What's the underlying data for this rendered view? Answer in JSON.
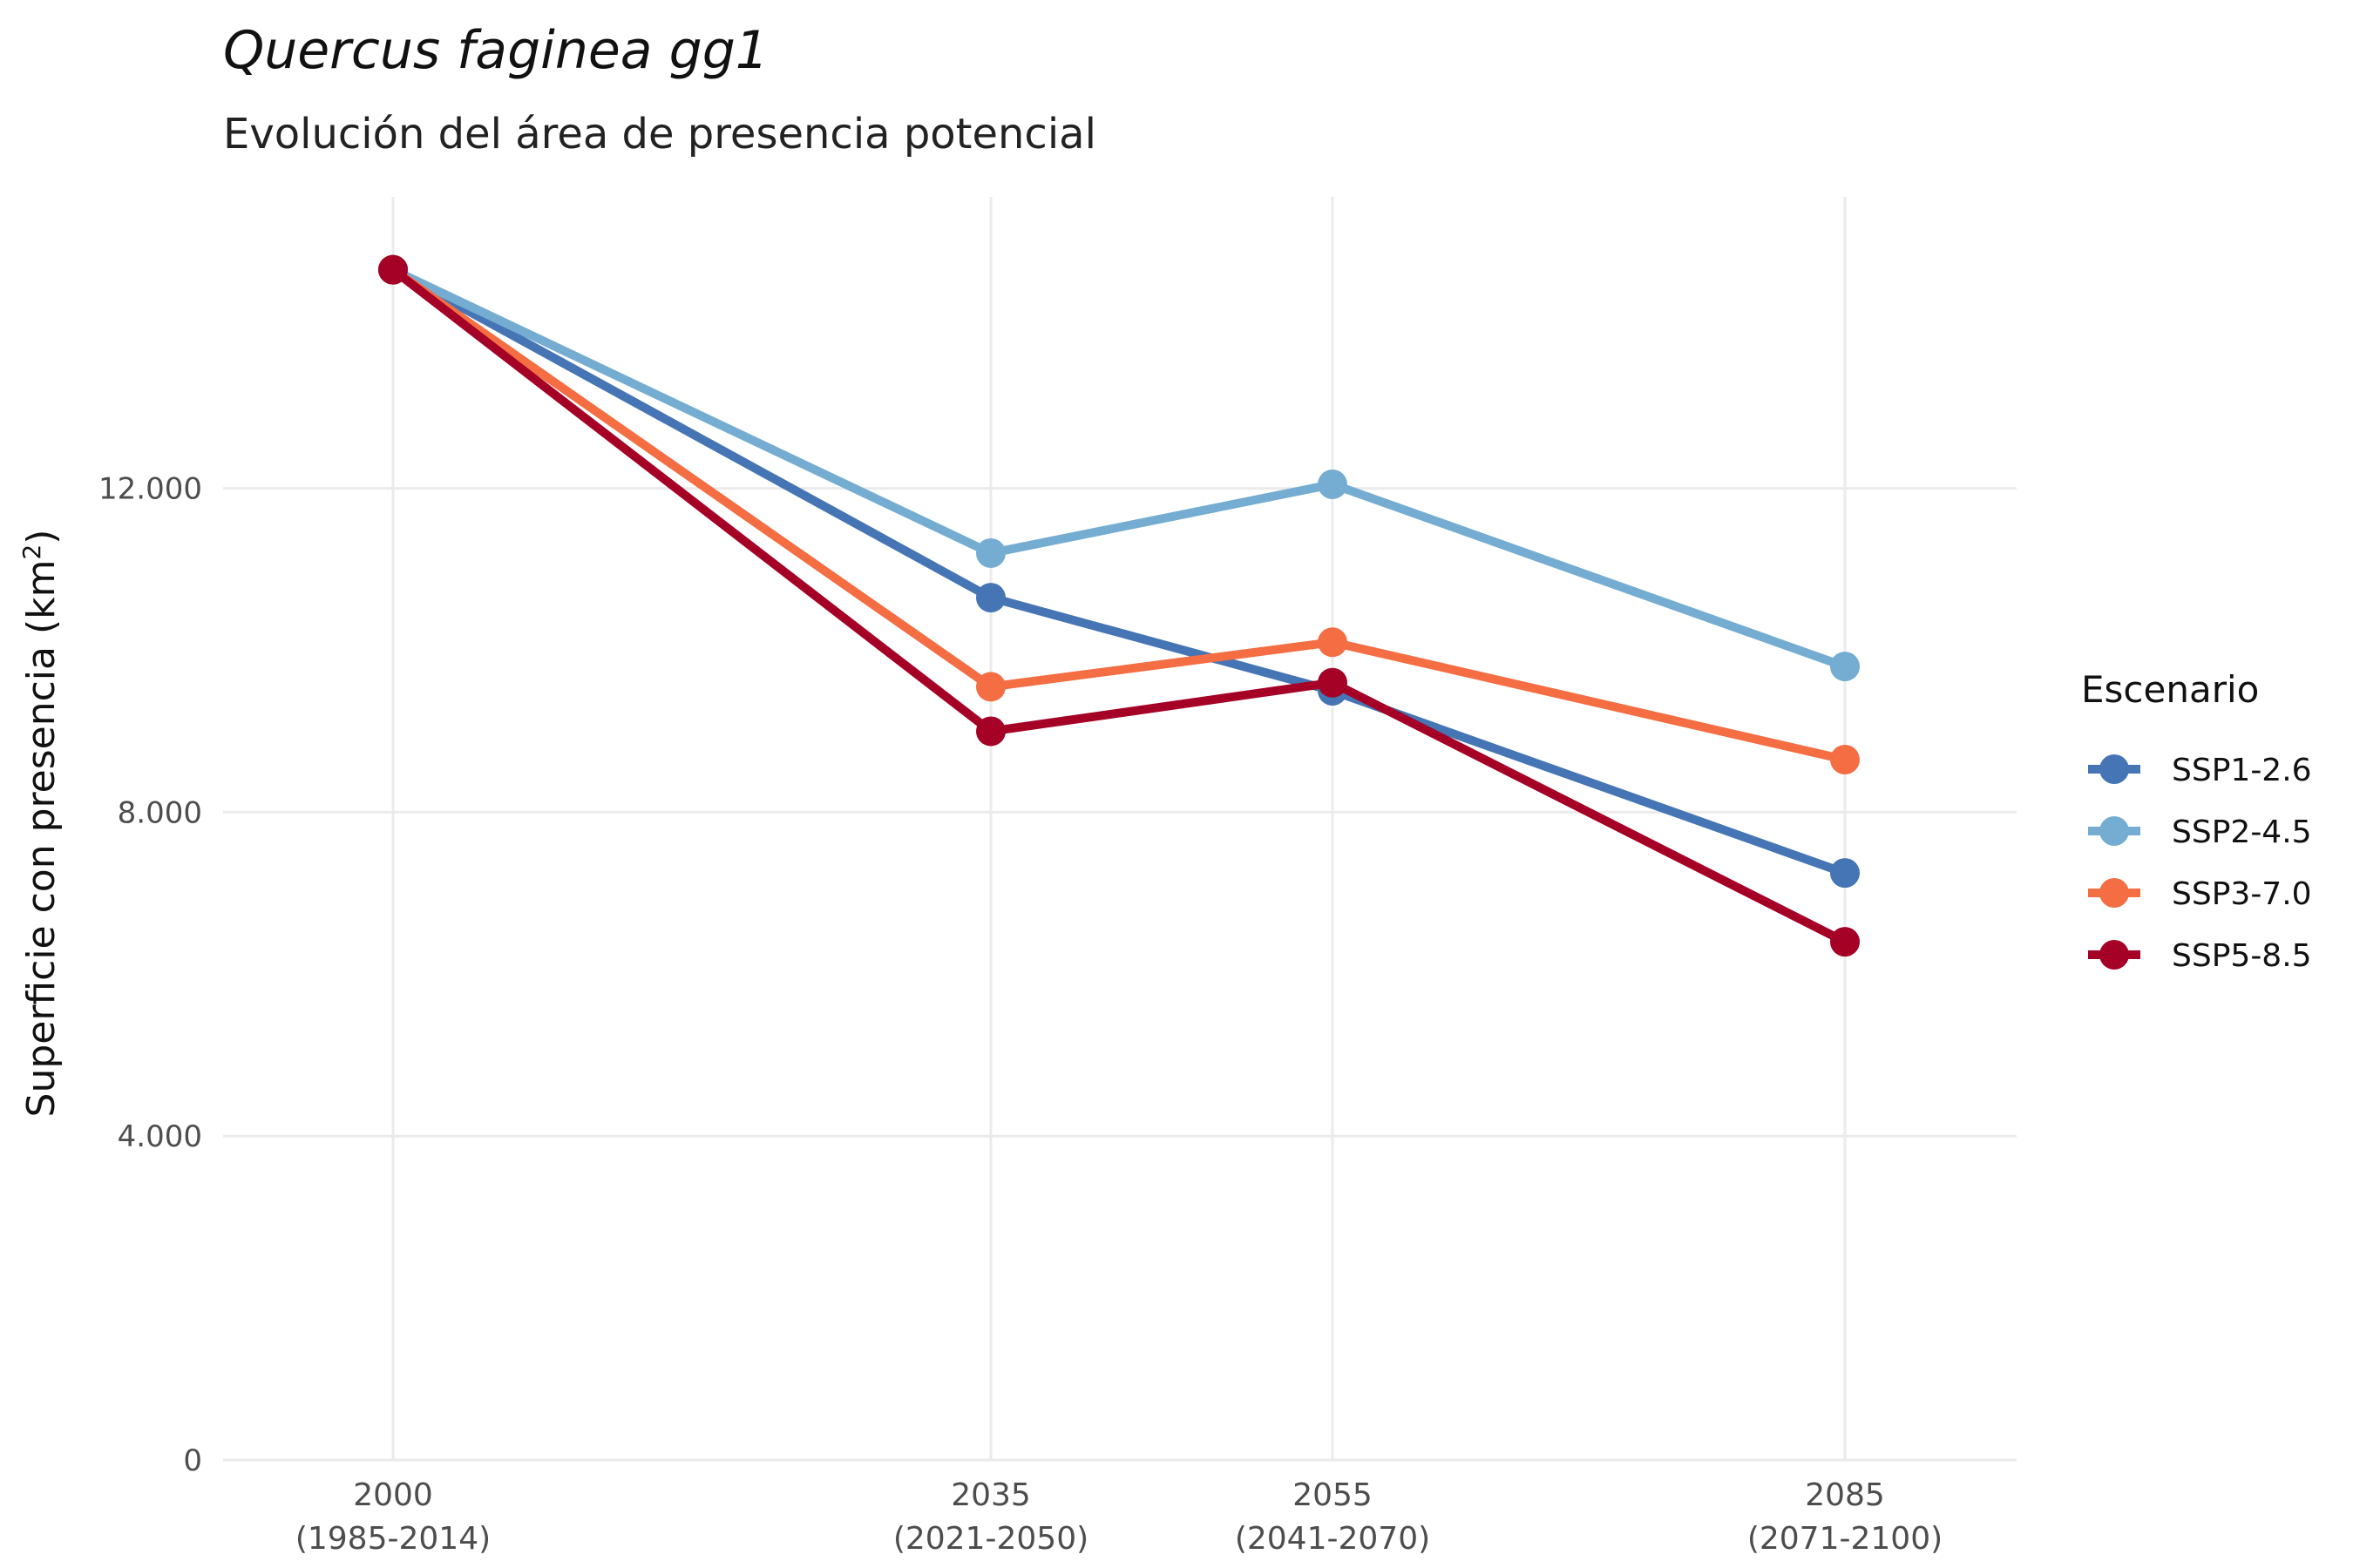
{
  "chart_data": {
    "type": "line",
    "title": "Quercus faginea gg1",
    "subtitle": "Evolución del área de presencia potencial",
    "ylabel_prefix": "Superficie con presencia (km",
    "ylabel_sup": "2",
    "ylabel_suffix": ")",
    "xlabel": "",
    "x": [
      2000,
      2035,
      2055,
      2085
    ],
    "x_tick_labels": [
      {
        "year": "2000",
        "period": "(1985-2014)"
      },
      {
        "year": "2035",
        "period": "(2021-2050)"
      },
      {
        "year": "2055",
        "period": "(2041-2070)"
      },
      {
        "year": "2085",
        "period": "(2071-2100)"
      }
    ],
    "ylim": [
      0,
      15600
    ],
    "y_ticks": [
      0,
      4000,
      8000,
      12000
    ],
    "y_tick_labels": [
      "0",
      "4.000",
      "8.000",
      "12.000"
    ],
    "legend_title": "Escenario",
    "legend_position": "right",
    "grid": true,
    "series": [
      {
        "name": "SSP1-2.6",
        "color": "#4575b4",
        "values": [
          14700,
          10650,
          9500,
          7250
        ]
      },
      {
        "name": "SSP2-4.5",
        "color": "#74add1",
        "values": [
          14700,
          11200,
          12050,
          9800
        ]
      },
      {
        "name": "SSP3-7.0",
        "color": "#f46d43",
        "values": [
          14700,
          9550,
          10100,
          8650
        ]
      },
      {
        "name": "SSP5-8.5",
        "color": "#a50026",
        "values": [
          14700,
          9000,
          9600,
          6400
        ]
      }
    ]
  }
}
